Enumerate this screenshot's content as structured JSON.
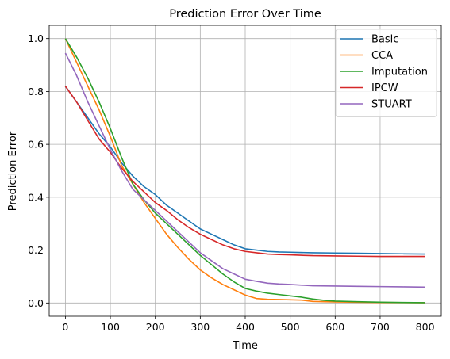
{
  "chart_data": {
    "type": "line",
    "title": "Prediction Error Over Time",
    "xlabel": "Time",
    "ylabel": "Prediction Error",
    "xlim": [
      -36,
      836
    ],
    "ylim": [
      -0.05,
      1.05
    ],
    "xticks": [
      0,
      100,
      200,
      300,
      400,
      500,
      600,
      700,
      800
    ],
    "yticks": [
      0.0,
      0.2,
      0.4,
      0.6,
      0.8,
      1.0
    ],
    "xtick_labels": [
      "0",
      "100",
      "200",
      "300",
      "400",
      "500",
      "600",
      "700",
      "800"
    ],
    "ytick_labels": [
      "0.0",
      "0.2",
      "0.4",
      "0.6",
      "0.8",
      "1.0"
    ],
    "grid": true,
    "legend_position": "top-right",
    "series": [
      {
        "name": "Basic",
        "color": "#1f77b4",
        "x": [
          0,
          25,
          50,
          75,
          100,
          125,
          150,
          175,
          200,
          225,
          250,
          275,
          300,
          325,
          350,
          375,
          400,
          425,
          450,
          475,
          500,
          550,
          600,
          650,
          700,
          750,
          800
        ],
        "y": [
          0.82,
          0.76,
          0.7,
          0.64,
          0.59,
          0.53,
          0.48,
          0.44,
          0.41,
          0.37,
          0.34,
          0.31,
          0.28,
          0.26,
          0.24,
          0.22,
          0.205,
          0.2,
          0.195,
          0.193,
          0.192,
          0.19,
          0.189,
          0.188,
          0.187,
          0.186,
          0.185
        ]
      },
      {
        "name": "CCA",
        "color": "#ff7f0e",
        "x": [
          0,
          25,
          50,
          75,
          100,
          125,
          150,
          175,
          200,
          225,
          250,
          275,
          300,
          325,
          350,
          375,
          400,
          425,
          450,
          475,
          500,
          525,
          550,
          600,
          650,
          700,
          750,
          800
        ],
        "y": [
          1.0,
          0.91,
          0.82,
          0.73,
          0.63,
          0.52,
          0.45,
          0.38,
          0.32,
          0.26,
          0.21,
          0.165,
          0.125,
          0.095,
          0.07,
          0.05,
          0.03,
          0.017,
          0.014,
          0.013,
          0.012,
          0.011,
          0.006,
          0.004,
          0.003,
          0.002,
          0.0015,
          0.001
        ]
      },
      {
        "name": "Imputation",
        "color": "#2ca02c",
        "x": [
          0,
          25,
          50,
          75,
          100,
          125,
          150,
          175,
          200,
          225,
          250,
          275,
          300,
          325,
          350,
          375,
          400,
          425,
          450,
          475,
          500,
          525,
          550,
          575,
          600,
          650,
          700,
          750,
          800
        ],
        "y": [
          1.0,
          0.93,
          0.85,
          0.76,
          0.66,
          0.55,
          0.45,
          0.39,
          0.34,
          0.3,
          0.26,
          0.22,
          0.18,
          0.145,
          0.11,
          0.08,
          0.055,
          0.045,
          0.037,
          0.032,
          0.027,
          0.022,
          0.015,
          0.01,
          0.007,
          0.005,
          0.003,
          0.002,
          0.001
        ]
      },
      {
        "name": "IPCW",
        "color": "#d62728",
        "x": [
          0,
          25,
          50,
          75,
          100,
          125,
          150,
          175,
          200,
          225,
          250,
          275,
          300,
          325,
          350,
          375,
          400,
          425,
          450,
          475,
          500,
          550,
          600,
          650,
          700,
          750,
          800
        ],
        "y": [
          0.82,
          0.76,
          0.69,
          0.62,
          0.57,
          0.51,
          0.46,
          0.42,
          0.38,
          0.35,
          0.315,
          0.285,
          0.26,
          0.24,
          0.22,
          0.205,
          0.195,
          0.19,
          0.185,
          0.183,
          0.182,
          0.179,
          0.178,
          0.177,
          0.176,
          0.176,
          0.176
        ]
      },
      {
        "name": "STUART",
        "color": "#9467bd",
        "x": [
          0,
          25,
          50,
          75,
          100,
          125,
          150,
          175,
          200,
          225,
          250,
          275,
          300,
          325,
          350,
          375,
          400,
          425,
          450,
          475,
          500,
          550,
          600,
          650,
          700,
          750,
          800
        ],
        "y": [
          0.945,
          0.86,
          0.76,
          0.67,
          0.58,
          0.5,
          0.43,
          0.39,
          0.35,
          0.31,
          0.27,
          0.23,
          0.19,
          0.16,
          0.13,
          0.11,
          0.09,
          0.082,
          0.075,
          0.072,
          0.07,
          0.065,
          0.064,
          0.063,
          0.062,
          0.061,
          0.06
        ]
      }
    ]
  }
}
